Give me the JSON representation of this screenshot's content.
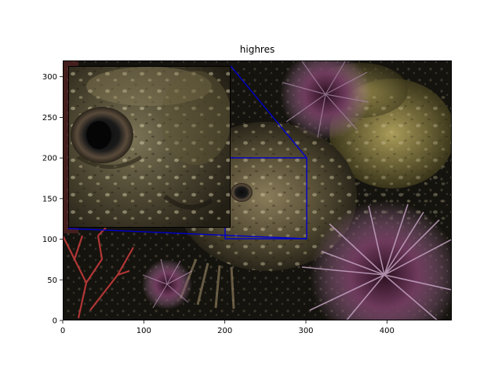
{
  "chart_data": {
    "type": "image",
    "title": "highres",
    "xlabel": "",
    "ylabel": "",
    "xlim": [
      0,
      480
    ],
    "ylim": [
      0,
      320
    ],
    "xticks": [
      0,
      100,
      200,
      300,
      400
    ],
    "yticks": [
      0,
      50,
      100,
      150,
      200,
      250,
      300
    ],
    "image_subject": "underwater photo: camouflaged fish head with purple sea urchins and red gorgonian",
    "zoom_region": {
      "x": [
        200,
        300
      ],
      "y": [
        100,
        200
      ]
    },
    "inset_view": {
      "x": [
        200,
        300
      ],
      "y": [
        100,
        200
      ]
    },
    "indicator_color": "#0000cc",
    "grid": false
  }
}
